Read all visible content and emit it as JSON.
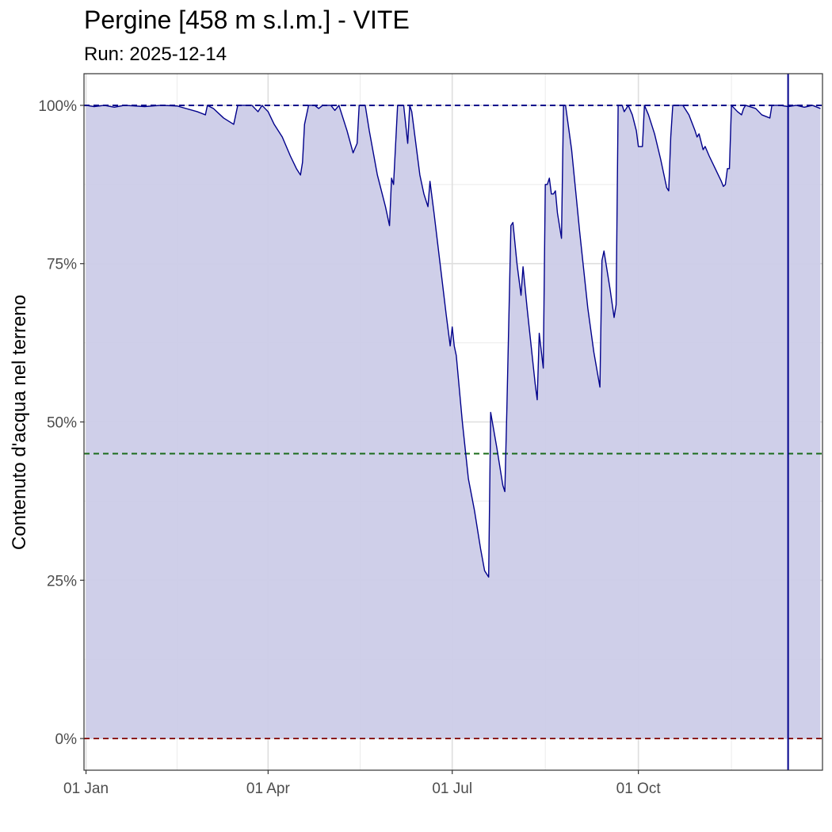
{
  "chart_data": {
    "type": "area",
    "title": "Pergine [458 m s.l.m.] - VITE",
    "subtitle": "Run: 2025-12-14",
    "xlabel": "",
    "ylabel": "Contenuto d'acqua nel terreno",
    "x_ticks": [
      {
        "date": "2025-01-01",
        "label": "01 Jan"
      },
      {
        "date": "2025-04-01",
        "label": "01 Apr"
      },
      {
        "date": "2025-07-01",
        "label": "01 Jul"
      },
      {
        "date": "2025-10-01",
        "label": "01 Oct"
      }
    ],
    "xlim": [
      "2024-12-31",
      "2025-12-31"
    ],
    "y_ticks": [
      {
        "value": 0,
        "label": "0%"
      },
      {
        "value": 25,
        "label": "25%"
      },
      {
        "value": 50,
        "label": "50%"
      },
      {
        "value": 75,
        "label": "75%"
      },
      {
        "value": 100,
        "label": "100%"
      }
    ],
    "ylim": [
      -5,
      105
    ],
    "grid": true,
    "colors": {
      "area_fill": "#cccce8",
      "line": "#00008b",
      "line_100": "#00008b",
      "line_45": "#1a6b1a",
      "line_0": "#8b1a1a",
      "run_marker": "#00008b"
    },
    "reference_lines": [
      {
        "value": 100,
        "color": "#00008b",
        "style": "dashed"
      },
      {
        "value": 45,
        "color": "#1a6b1a",
        "style": "dashed"
      },
      {
        "value": 0,
        "color": "#8b1a1a",
        "style": "dashed"
      }
    ],
    "run_marker_date": "2025-12-14",
    "series": [
      {
        "points": [
          [
            "2025-01-01",
            100
          ],
          [
            "2025-01-05",
            99.8
          ],
          [
            "2025-01-10",
            100
          ],
          [
            "2025-01-15",
            99.7
          ],
          [
            "2025-01-20",
            100
          ],
          [
            "2025-01-30",
            99.8
          ],
          [
            "2025-02-07",
            100
          ],
          [
            "2025-02-15",
            99.9
          ],
          [
            "2025-02-25",
            99
          ],
          [
            "2025-03-01",
            98.5
          ],
          [
            "2025-03-02",
            100
          ],
          [
            "2025-03-05",
            99.5
          ],
          [
            "2025-03-10",
            98
          ],
          [
            "2025-03-15",
            97
          ],
          [
            "2025-03-17",
            100
          ],
          [
            "2025-03-24",
            100
          ],
          [
            "2025-03-27",
            99
          ],
          [
            "2025-03-29",
            100
          ],
          [
            "2025-04-01",
            99
          ],
          [
            "2025-04-04",
            97
          ],
          [
            "2025-04-08",
            95
          ],
          [
            "2025-04-12",
            92
          ],
          [
            "2025-04-15",
            90
          ],
          [
            "2025-04-17",
            89
          ],
          [
            "2025-04-18",
            91
          ],
          [
            "2025-04-19",
            97
          ],
          [
            "2025-04-21",
            100
          ],
          [
            "2025-04-24",
            100
          ],
          [
            "2025-04-26",
            99.5
          ],
          [
            "2025-04-28",
            100
          ],
          [
            "2025-05-02",
            100
          ],
          [
            "2025-05-04",
            99.2
          ],
          [
            "2025-05-06",
            100
          ],
          [
            "2025-05-10",
            96
          ],
          [
            "2025-05-13",
            92.5
          ],
          [
            "2025-05-15",
            94
          ],
          [
            "2025-05-16",
            100
          ],
          [
            "2025-05-19",
            100
          ],
          [
            "2025-05-21",
            96
          ],
          [
            "2025-05-25",
            89
          ],
          [
            "2025-05-29",
            84
          ],
          [
            "2025-05-31",
            81
          ],
          [
            "2025-06-01",
            88.5
          ],
          [
            "2025-06-02",
            87.5
          ],
          [
            "2025-06-04",
            100
          ],
          [
            "2025-06-07",
            100
          ],
          [
            "2025-06-09",
            94
          ],
          [
            "2025-06-10",
            100
          ],
          [
            "2025-06-11",
            99
          ],
          [
            "2025-06-15",
            89
          ],
          [
            "2025-06-17",
            86
          ],
          [
            "2025-06-19",
            84
          ],
          [
            "2025-06-20",
            88
          ],
          [
            "2025-06-22",
            83
          ],
          [
            "2025-06-25",
            75
          ],
          [
            "2025-06-28",
            67
          ],
          [
            "2025-06-30",
            62
          ],
          [
            "2025-07-01",
            65
          ],
          [
            "2025-07-02",
            62
          ],
          [
            "2025-07-03",
            60.5
          ],
          [
            "2025-07-06",
            50
          ],
          [
            "2025-07-09",
            41
          ],
          [
            "2025-07-12",
            36
          ],
          [
            "2025-07-15",
            30
          ],
          [
            "2025-07-17",
            26.5
          ],
          [
            "2025-07-19",
            25.5
          ],
          [
            "2025-07-20",
            51.5
          ],
          [
            "2025-07-23",
            46
          ],
          [
            "2025-07-24",
            44
          ],
          [
            "2025-07-26",
            40
          ],
          [
            "2025-07-27",
            39
          ],
          [
            "2025-07-28",
            52
          ],
          [
            "2025-07-30",
            81
          ],
          [
            "2025-07-31",
            81.5
          ],
          [
            "2025-08-02",
            75
          ],
          [
            "2025-08-04",
            70
          ],
          [
            "2025-08-05",
            74.5
          ],
          [
            "2025-08-07",
            68
          ],
          [
            "2025-08-09",
            62
          ],
          [
            "2025-08-11",
            56
          ],
          [
            "2025-08-12",
            53.5
          ],
          [
            "2025-08-13",
            64
          ],
          [
            "2025-08-15",
            58.5
          ],
          [
            "2025-08-16",
            87.5
          ],
          [
            "2025-08-17",
            87.5
          ],
          [
            "2025-08-18",
            88.5
          ],
          [
            "2025-08-19",
            86
          ],
          [
            "2025-08-20",
            86
          ],
          [
            "2025-08-21",
            86.5
          ],
          [
            "2025-08-22",
            83
          ],
          [
            "2025-08-24",
            79
          ],
          [
            "2025-08-25",
            100
          ],
          [
            "2025-08-26",
            100
          ],
          [
            "2025-08-29",
            93
          ],
          [
            "2025-09-02",
            80
          ],
          [
            "2025-09-06",
            68
          ],
          [
            "2025-09-09",
            61
          ],
          [
            "2025-09-12",
            55.5
          ],
          [
            "2025-09-13",
            75.5
          ],
          [
            "2025-09-14",
            77
          ],
          [
            "2025-09-17",
            71
          ],
          [
            "2025-09-19",
            66.5
          ],
          [
            "2025-09-20",
            68.5
          ],
          [
            "2025-09-21",
            100
          ],
          [
            "2025-09-23",
            100
          ],
          [
            "2025-09-24",
            99
          ],
          [
            "2025-09-26",
            100
          ],
          [
            "2025-09-28",
            98.5
          ],
          [
            "2025-09-30",
            96
          ],
          [
            "2025-10-01",
            93.5
          ],
          [
            "2025-10-03",
            93.5
          ],
          [
            "2025-10-04",
            100
          ],
          [
            "2025-10-06",
            98.5
          ],
          [
            "2025-10-09",
            95.5
          ],
          [
            "2025-10-12",
            91.5
          ],
          [
            "2025-10-15",
            87
          ],
          [
            "2025-10-16",
            86.5
          ],
          [
            "2025-10-17",
            95
          ],
          [
            "2025-10-18",
            100
          ],
          [
            "2025-10-20",
            100
          ],
          [
            "2025-10-23",
            100
          ],
          [
            "2025-10-26",
            98.5
          ],
          [
            "2025-10-29",
            96
          ],
          [
            "2025-10-30",
            95
          ],
          [
            "2025-10-31",
            95.5
          ],
          [
            "2025-11-02",
            93
          ],
          [
            "2025-11-03",
            93.5
          ],
          [
            "2025-11-05",
            92
          ],
          [
            "2025-11-08",
            90
          ],
          [
            "2025-11-11",
            88
          ],
          [
            "2025-11-12",
            87.2
          ],
          [
            "2025-11-13",
            87.5
          ],
          [
            "2025-11-14",
            90
          ],
          [
            "2025-11-15",
            90
          ],
          [
            "2025-11-16",
            100
          ],
          [
            "2025-11-19",
            99
          ],
          [
            "2025-11-21",
            98.5
          ],
          [
            "2025-11-22",
            99.5
          ],
          [
            "2025-11-23",
            100
          ],
          [
            "2025-11-28",
            99.5
          ],
          [
            "2025-12-01",
            98.5
          ],
          [
            "2025-12-05",
            98
          ],
          [
            "2025-12-06",
            100
          ],
          [
            "2025-12-10",
            100
          ],
          [
            "2025-12-14",
            99.8
          ],
          [
            "2025-12-18",
            100
          ],
          [
            "2025-12-22",
            99.7
          ],
          [
            "2025-12-26",
            100
          ],
          [
            "2025-12-30",
            99.5
          ]
        ]
      }
    ]
  }
}
